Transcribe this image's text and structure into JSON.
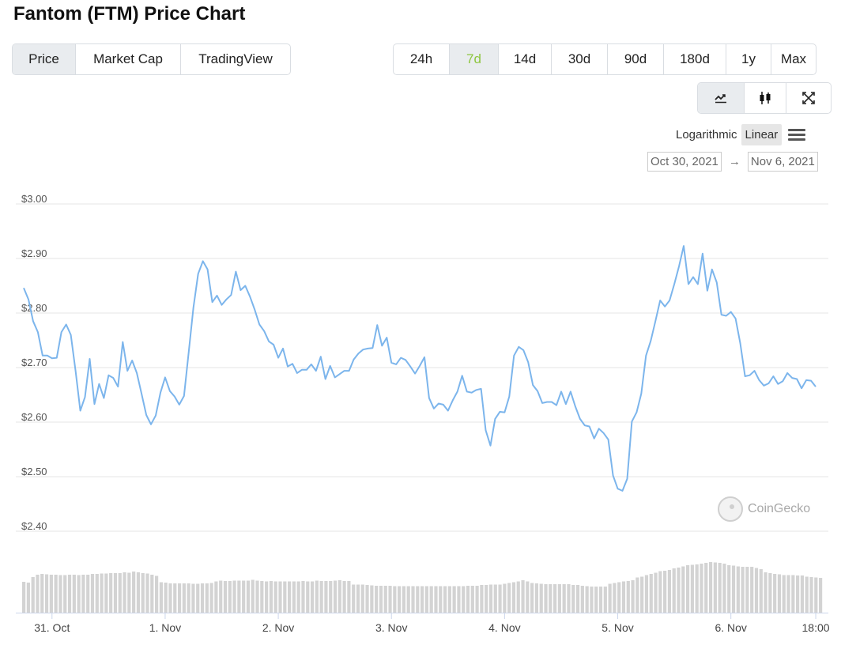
{
  "header": {
    "title": "Fantom (FTM) Price Chart"
  },
  "chart_type_tabs": [
    {
      "label": "Price",
      "active": true
    },
    {
      "label": "Market Cap",
      "active": false
    },
    {
      "label": "TradingView",
      "active": false
    }
  ],
  "range_tabs": [
    {
      "label": "24h",
      "active": false
    },
    {
      "label": "7d",
      "active": true
    },
    {
      "label": "14d",
      "active": false
    },
    {
      "label": "30d",
      "active": false
    },
    {
      "label": "90d",
      "active": false
    },
    {
      "label": "180d",
      "active": false
    },
    {
      "label": "1y",
      "active": false
    },
    {
      "label": "Max",
      "active": false
    }
  ],
  "view_buttons": [
    {
      "icon": "line-chart-icon",
      "active": true
    },
    {
      "icon": "candlestick-icon",
      "active": false
    },
    {
      "icon": "fullscreen-icon",
      "active": false
    }
  ],
  "scale": {
    "logarithmic": "Logarithmic",
    "linear": "Linear",
    "active": "linear",
    "menu_icon": "hamburger-menu-icon"
  },
  "date_range": {
    "from": "Oct 30, 2021",
    "arrow": "→",
    "to": "Nov 6, 2021"
  },
  "watermark": {
    "text": "CoinGecko",
    "icon": "coingecko-logo-icon"
  },
  "colors": {
    "line": "#7cb5ec",
    "volume": "#d3d3d3",
    "accent_green": "#8dc63f",
    "grid": "#e6e6e6"
  },
  "chart_data": {
    "type": "line",
    "title": "",
    "xlabel": "",
    "ylabel": "",
    "ylim": [
      2.4,
      3.0
    ],
    "y_ticks": [
      "$3.00",
      "$2.90",
      "$2.80",
      "$2.70",
      "$2.60",
      "$2.50",
      "$2.40"
    ],
    "y_tick_values": [
      3.0,
      2.9,
      2.8,
      2.7,
      2.6,
      2.5,
      2.4
    ],
    "grid": true,
    "x_range": [
      "2021-10-30 18:00",
      "2021-11-06 19:00"
    ],
    "x_ticks": [
      {
        "label": "31. Oct",
        "t": "2021-10-31 00:00"
      },
      {
        "label": "1. Nov",
        "t": "2021-11-01 00:00"
      },
      {
        "label": "2. Nov",
        "t": "2021-11-02 00:00"
      },
      {
        "label": "3. Nov",
        "t": "2021-11-03 00:00"
      },
      {
        "label": "4. Nov",
        "t": "2021-11-04 00:00"
      },
      {
        "label": "5. Nov",
        "t": "2021-11-05 00:00"
      },
      {
        "label": "6. Nov",
        "t": "2021-11-06 00:00"
      },
      {
        "label": "18:00",
        "t": "2021-11-06 18:00"
      }
    ],
    "series": [
      {
        "points": [
          [
            "2021-10-30 18:00",
            2.846
          ],
          [
            "2021-10-30 19:00",
            2.825
          ],
          [
            "2021-10-30 20:00",
            2.785
          ],
          [
            "2021-10-30 21:00",
            2.765
          ],
          [
            "2021-10-30 22:00",
            2.722
          ],
          [
            "2021-10-30 23:00",
            2.722
          ],
          [
            "2021-10-31 00:00",
            2.717
          ],
          [
            "2021-10-31 01:00",
            2.718
          ],
          [
            "2021-10-31 02:00",
            2.765
          ],
          [
            "2021-10-31 03:00",
            2.779
          ],
          [
            "2021-10-31 04:00",
            2.76
          ],
          [
            "2021-10-31 05:00",
            2.694
          ],
          [
            "2021-10-31 06:00",
            2.621
          ],
          [
            "2021-10-31 07:00",
            2.646
          ],
          [
            "2021-10-31 08:00",
            2.716
          ],
          [
            "2021-10-31 09:00",
            2.633
          ],
          [
            "2021-10-31 10:00",
            2.67
          ],
          [
            "2021-10-31 11:00",
            2.644
          ],
          [
            "2021-10-31 12:00",
            2.686
          ],
          [
            "2021-10-31 13:00",
            2.681
          ],
          [
            "2021-10-31 14:00",
            2.665
          ],
          [
            "2021-10-31 15:00",
            2.747
          ],
          [
            "2021-10-31 16:00",
            2.694
          ],
          [
            "2021-10-31 17:00",
            2.713
          ],
          [
            "2021-10-31 18:00",
            2.69
          ],
          [
            "2021-10-31 19:00",
            2.652
          ],
          [
            "2021-10-31 20:00",
            2.613
          ],
          [
            "2021-10-31 21:00",
            2.596
          ],
          [
            "2021-10-31 22:00",
            2.612
          ],
          [
            "2021-10-31 23:00",
            2.654
          ],
          [
            "2021-11-01 00:00",
            2.682
          ],
          [
            "2021-11-01 01:00",
            2.657
          ],
          [
            "2021-11-01 02:00",
            2.647
          ],
          [
            "2021-11-01 03:00",
            2.632
          ],
          [
            "2021-11-01 04:00",
            2.648
          ],
          [
            "2021-11-01 05:00",
            2.729
          ],
          [
            "2021-11-01 06:00",
            2.81
          ],
          [
            "2021-11-01 07:00",
            2.872
          ],
          [
            "2021-11-01 08:00",
            2.895
          ],
          [
            "2021-11-01 09:00",
            2.88
          ],
          [
            "2021-11-01 10:00",
            2.82
          ],
          [
            "2021-11-01 11:00",
            2.832
          ],
          [
            "2021-11-01 12:00",
            2.815
          ],
          [
            "2021-11-01 13:00",
            2.825
          ],
          [
            "2021-11-01 14:00",
            2.833
          ],
          [
            "2021-11-01 15:00",
            2.876
          ],
          [
            "2021-11-01 16:00",
            2.842
          ],
          [
            "2021-11-01 17:00",
            2.85
          ],
          [
            "2021-11-01 18:00",
            2.83
          ],
          [
            "2021-11-01 19:00",
            2.806
          ],
          [
            "2021-11-01 20:00",
            2.779
          ],
          [
            "2021-11-01 21:00",
            2.767
          ],
          [
            "2021-11-01 22:00",
            2.748
          ],
          [
            "2021-11-01 23:00",
            2.742
          ],
          [
            "2021-11-02 00:00",
            2.718
          ],
          [
            "2021-11-02 01:00",
            2.735
          ],
          [
            "2021-11-02 02:00",
            2.702
          ],
          [
            "2021-11-02 03:00",
            2.707
          ],
          [
            "2021-11-02 04:00",
            2.69
          ],
          [
            "2021-11-02 05:00",
            2.696
          ],
          [
            "2021-11-02 06:00",
            2.696
          ],
          [
            "2021-11-02 07:00",
            2.706
          ],
          [
            "2021-11-02 08:00",
            2.694
          ],
          [
            "2021-11-02 09:00",
            2.72
          ],
          [
            "2021-11-02 10:00",
            2.679
          ],
          [
            "2021-11-02 11:00",
            2.703
          ],
          [
            "2021-11-02 12:00",
            2.682
          ],
          [
            "2021-11-02 13:00",
            2.688
          ],
          [
            "2021-11-02 14:00",
            2.694
          ],
          [
            "2021-11-02 15:00",
            2.694
          ],
          [
            "2021-11-02 16:00",
            2.715
          ],
          [
            "2021-11-02 17:00",
            2.726
          ],
          [
            "2021-11-02 18:00",
            2.733
          ],
          [
            "2021-11-02 19:00",
            2.735
          ],
          [
            "2021-11-02 20:00",
            2.736
          ],
          [
            "2021-11-02 21:00",
            2.778
          ],
          [
            "2021-11-02 22:00",
            2.74
          ],
          [
            "2021-11-02 23:00",
            2.755
          ],
          [
            "2021-11-03 00:00",
            2.709
          ],
          [
            "2021-11-03 01:00",
            2.706
          ],
          [
            "2021-11-03 02:00",
            2.718
          ],
          [
            "2021-11-03 03:00",
            2.714
          ],
          [
            "2021-11-03 04:00",
            2.702
          ],
          [
            "2021-11-03 05:00",
            2.689
          ],
          [
            "2021-11-03 06:00",
            2.703
          ],
          [
            "2021-11-03 07:00",
            2.719
          ],
          [
            "2021-11-03 08:00",
            2.644
          ],
          [
            "2021-11-03 09:00",
            2.625
          ],
          [
            "2021-11-03 10:00",
            2.634
          ],
          [
            "2021-11-03 11:00",
            2.632
          ],
          [
            "2021-11-03 12:00",
            2.621
          ],
          [
            "2021-11-03 13:00",
            2.64
          ],
          [
            "2021-11-03 14:00",
            2.656
          ],
          [
            "2021-11-03 15:00",
            2.685
          ],
          [
            "2021-11-03 16:00",
            2.656
          ],
          [
            "2021-11-03 17:00",
            2.654
          ],
          [
            "2021-11-03 18:00",
            2.659
          ],
          [
            "2021-11-03 19:00",
            2.661
          ],
          [
            "2021-11-03 20:00",
            2.585
          ],
          [
            "2021-11-03 21:00",
            2.557
          ],
          [
            "2021-11-03 22:00",
            2.606
          ],
          [
            "2021-11-03 23:00",
            2.619
          ],
          [
            "2021-11-04 00:00",
            2.618
          ],
          [
            "2021-11-04 01:00",
            2.647
          ],
          [
            "2021-11-04 02:00",
            2.722
          ],
          [
            "2021-11-04 03:00",
            2.738
          ],
          [
            "2021-11-04 04:00",
            2.732
          ],
          [
            "2021-11-04 05:00",
            2.71
          ],
          [
            "2021-11-04 06:00",
            2.668
          ],
          [
            "2021-11-04 07:00",
            2.657
          ],
          [
            "2021-11-04 08:00",
            2.635
          ],
          [
            "2021-11-04 09:00",
            2.637
          ],
          [
            "2021-11-04 10:00",
            2.637
          ],
          [
            "2021-11-04 11:00",
            2.631
          ],
          [
            "2021-11-04 12:00",
            2.656
          ],
          [
            "2021-11-04 13:00",
            2.633
          ],
          [
            "2021-11-04 14:00",
            2.656
          ],
          [
            "2021-11-04 15:00",
            2.629
          ],
          [
            "2021-11-04 16:00",
            2.606
          ],
          [
            "2021-11-04 17:00",
            2.594
          ],
          [
            "2021-11-04 18:00",
            2.592
          ],
          [
            "2021-11-04 19:00",
            2.57
          ],
          [
            "2021-11-04 20:00",
            2.588
          ],
          [
            "2021-11-04 21:00",
            2.58
          ],
          [
            "2021-11-04 22:00",
            2.568
          ],
          [
            "2021-11-04 23:00",
            2.502
          ],
          [
            "2021-11-05 00:00",
            2.478
          ],
          [
            "2021-11-05 01:00",
            2.474
          ],
          [
            "2021-11-05 02:00",
            2.496
          ],
          [
            "2021-11-05 03:00",
            2.601
          ],
          [
            "2021-11-05 04:00",
            2.618
          ],
          [
            "2021-11-05 05:00",
            2.652
          ],
          [
            "2021-11-05 06:00",
            2.722
          ],
          [
            "2021-11-05 07:00",
            2.749
          ],
          [
            "2021-11-05 08:00",
            2.785
          ],
          [
            "2021-11-05 09:00",
            2.823
          ],
          [
            "2021-11-05 10:00",
            2.812
          ],
          [
            "2021-11-05 11:00",
            2.823
          ],
          [
            "2021-11-05 12:00",
            2.853
          ],
          [
            "2021-11-05 13:00",
            2.886
          ],
          [
            "2021-11-05 14:00",
            2.923
          ],
          [
            "2021-11-05 15:00",
            2.853
          ],
          [
            "2021-11-05 16:00",
            2.866
          ],
          [
            "2021-11-05 17:00",
            2.853
          ],
          [
            "2021-11-05 18:00",
            2.909
          ],
          [
            "2021-11-05 19:00",
            2.841
          ],
          [
            "2021-11-05 20:00",
            2.88
          ],
          [
            "2021-11-05 21:00",
            2.856
          ],
          [
            "2021-11-05 22:00",
            2.797
          ],
          [
            "2021-11-05 23:00",
            2.795
          ],
          [
            "2021-11-06 00:00",
            2.802
          ],
          [
            "2021-11-06 01:00",
            2.79
          ],
          [
            "2021-11-06 02:00",
            2.744
          ],
          [
            "2021-11-06 03:00",
            2.684
          ],
          [
            "2021-11-06 04:00",
            2.686
          ],
          [
            "2021-11-06 05:00",
            2.694
          ],
          [
            "2021-11-06 06:00",
            2.677
          ],
          [
            "2021-11-06 07:00",
            2.667
          ],
          [
            "2021-11-06 08:00",
            2.671
          ],
          [
            "2021-11-06 09:00",
            2.684
          ],
          [
            "2021-11-06 10:00",
            2.67
          ],
          [
            "2021-11-06 11:00",
            2.675
          ],
          [
            "2021-11-06 12:00",
            2.69
          ],
          [
            "2021-11-06 13:00",
            2.681
          ],
          [
            "2021-11-06 14:00",
            2.679
          ],
          [
            "2021-11-06 15:00",
            2.662
          ],
          [
            "2021-11-06 16:00",
            2.677
          ],
          [
            "2021-11-06 17:00",
            2.676
          ],
          [
            "2021-11-06 18:00",
            2.665
          ]
        ]
      }
    ],
    "volume_relative": [
      0.78,
      0.76,
      0.9,
      0.96,
      0.98,
      0.97,
      0.96,
      0.96,
      0.95,
      0.95,
      0.96,
      0.96,
      0.95,
      0.96,
      0.96,
      0.98,
      0.98,
      0.99,
      0.99,
      1.0,
      1.0,
      1.0,
      1.02,
      1.01,
      1.04,
      1.02,
      1.0,
      0.99,
      0.96,
      0.93,
      0.77,
      0.76,
      0.74,
      0.74,
      0.74,
      0.74,
      0.74,
      0.73,
      0.73,
      0.74,
      0.74,
      0.75,
      0.79,
      0.81,
      0.8,
      0.8,
      0.81,
      0.81,
      0.81,
      0.81,
      0.83,
      0.81,
      0.8,
      0.79,
      0.8,
      0.79,
      0.79,
      0.79,
      0.79,
      0.79,
      0.79,
      0.8,
      0.79,
      0.79,
      0.81,
      0.8,
      0.8,
      0.8,
      0.81,
      0.82,
      0.8,
      0.8,
      0.71,
      0.71,
      0.71,
      0.7,
      0.69,
      0.68,
      0.68,
      0.68,
      0.68,
      0.67,
      0.67,
      0.67,
      0.67,
      0.67,
      0.67,
      0.67,
      0.67,
      0.67,
      0.67,
      0.67,
      0.67,
      0.67,
      0.67,
      0.67,
      0.67,
      0.68,
      0.68,
      0.68,
      0.7,
      0.7,
      0.71,
      0.71,
      0.71,
      0.73,
      0.75,
      0.77,
      0.79,
      0.82,
      0.79,
      0.75,
      0.74,
      0.73,
      0.72,
      0.72,
      0.72,
      0.72,
      0.72,
      0.72,
      0.7,
      0.7,
      0.68,
      0.67,
      0.66,
      0.66,
      0.66,
      0.66,
      0.73,
      0.75,
      0.77,
      0.79,
      0.8,
      0.82,
      0.89,
      0.91,
      0.95,
      0.98,
      1.01,
      1.05,
      1.06,
      1.08,
      1.12,
      1.14,
      1.17,
      1.2,
      1.21,
      1.22,
      1.24,
      1.26,
      1.28,
      1.27,
      1.26,
      1.24,
      1.2,
      1.19,
      1.17,
      1.16,
      1.16,
      1.16,
      1.13,
      1.1,
      1.02,
      1.0,
      0.98,
      0.97,
      0.95,
      0.95,
      0.95,
      0.94,
      0.94,
      0.91,
      0.9,
      0.89,
      0.88
    ]
  }
}
